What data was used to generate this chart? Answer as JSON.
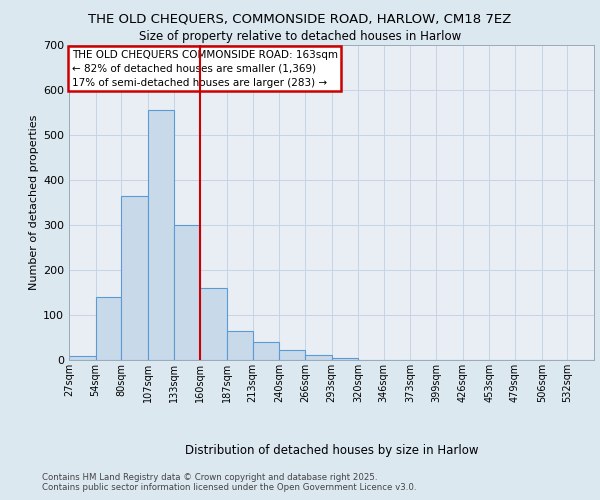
{
  "title_line1": "THE OLD CHEQUERS, COMMONSIDE ROAD, HARLOW, CM18 7EZ",
  "title_line2": "Size of property relative to detached houses in Harlow",
  "xlabel": "Distribution of detached houses by size in Harlow",
  "ylabel": "Number of detached properties",
  "bar_values": [
    10,
    140,
    365,
    555,
    300,
    160,
    65,
    40,
    22,
    12,
    5,
    0,
    0,
    0,
    0,
    0,
    0,
    0,
    0,
    0
  ],
  "bin_edges": [
    27,
    54,
    80,
    107,
    133,
    160,
    187,
    213,
    240,
    266,
    293,
    320,
    346,
    373,
    399,
    426,
    453,
    479,
    506,
    532,
    559
  ],
  "bar_color": "#c8daea",
  "bar_edge_color": "#5b9bd5",
  "vline_x": 160,
  "vline_color": "#cc0000",
  "ylim": [
    0,
    700
  ],
  "yticks": [
    0,
    100,
    200,
    300,
    400,
    500,
    600,
    700
  ],
  "annotation_text": "THE OLD CHEQUERS COMMONSIDE ROAD: 163sqm\n← 82% of detached houses are smaller (1,369)\n17% of semi-detached houses are larger (283) →",
  "annotation_box_color": "#cc0000",
  "footer_text": "Contains HM Land Registry data © Crown copyright and database right 2025.\nContains public sector information licensed under the Open Government Licence v3.0.",
  "bg_color": "#e8eef4",
  "grid_color": "#c5d5e5",
  "fig_bg": "#dce8f0"
}
